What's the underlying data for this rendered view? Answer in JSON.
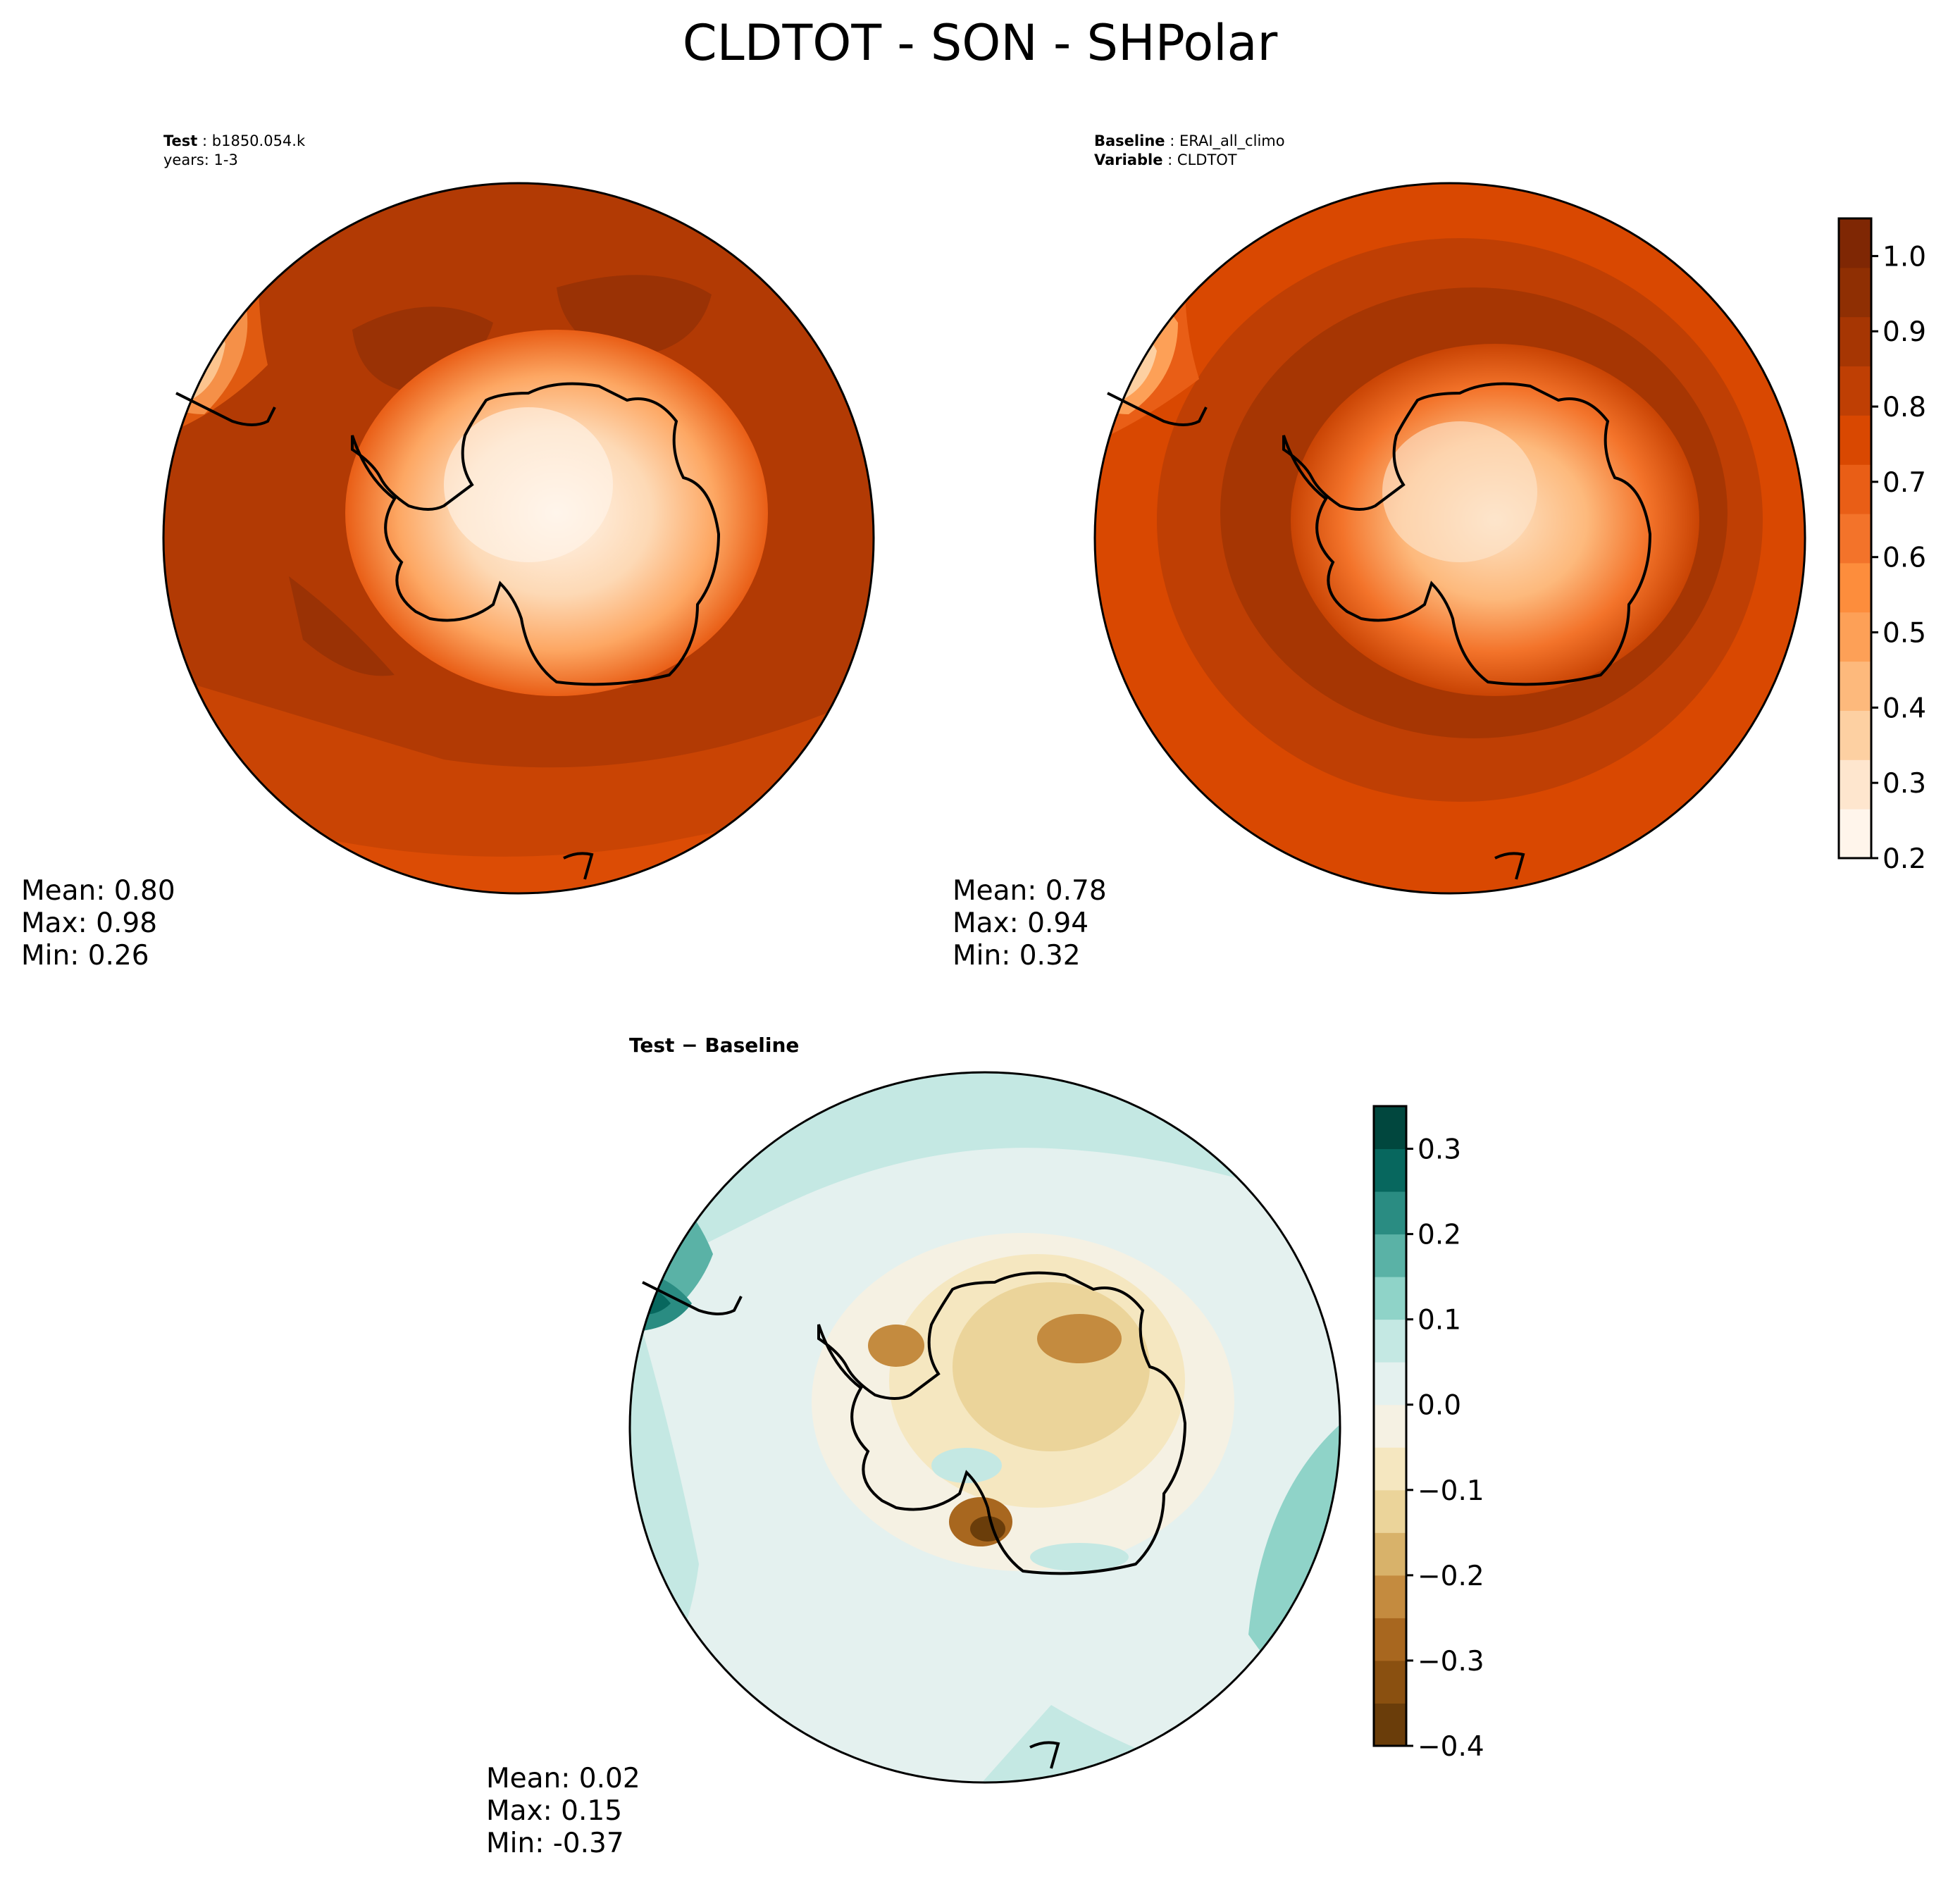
{
  "title": "CLDTOT - SON - SHPolar",
  "panels": {
    "test": {
      "label_key": "Test",
      "label_value": "b1850.054.k",
      "label_line2": "years: 1-3",
      "stats": {
        "mean": "Mean:  0.80",
        "max": "Max:  0.98",
        "min": "Min:  0.26"
      }
    },
    "baseline": {
      "label_key": "Baseline",
      "label_value": "ERAI_all_climo",
      "label2_key": "Variable",
      "label2_value": "CLDTOT",
      "stats": {
        "mean": "Mean:  0.78",
        "max": "Max:  0.94",
        "min": "Min:  0.32"
      }
    },
    "diff": {
      "label": "Test − Baseline",
      "stats": {
        "mean": "Mean:  0.02",
        "max": "Max:  0.15",
        "min": "Min: -0.37"
      }
    }
  },
  "colorbars": {
    "field": {
      "ticks": [
        "1.0",
        "0.9",
        "0.8",
        "0.7",
        "0.6",
        "0.5",
        "0.4",
        "0.3",
        "0.2"
      ],
      "colors": [
        "#fff5eb",
        "#fee6ce",
        "#fdd0a2",
        "#fdb97c",
        "#fda057",
        "#fd8d3c",
        "#f3732a",
        "#e95e16",
        "#d94801",
        "#bf3f04",
        "#a63603",
        "#8f2f03",
        "#7f2704"
      ]
    },
    "diff": {
      "ticks": [
        "0.3",
        "0.2",
        "0.1",
        "0.0",
        "−0.1",
        "−0.2",
        "−0.3",
        "−0.4"
      ],
      "colors": [
        "#6a3d0a",
        "#8a5010",
        "#a8671f",
        "#c48b3f",
        "#d8b26a",
        "#ebd49a",
        "#f5e7c0",
        "#f5f1e3",
        "#e4f1ef",
        "#c4e8e3",
        "#8fd3c8",
        "#5ab2a6",
        "#2a8c82",
        "#07675e",
        "#01473e"
      ]
    }
  }
}
